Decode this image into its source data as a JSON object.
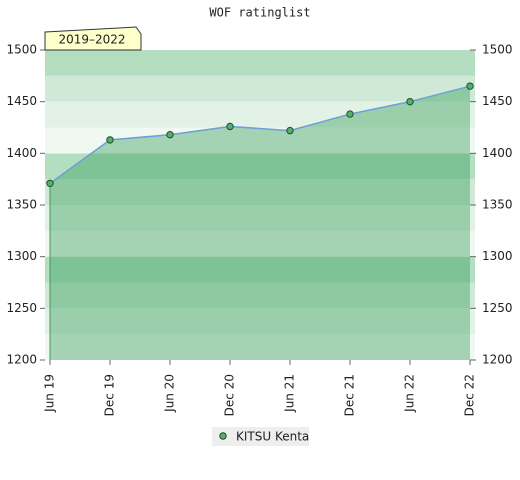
{
  "chart_data": {
    "type": "line",
    "title": "WOF ratinglist",
    "annotation": "2019–2022",
    "categories": [
      "Jun 19",
      "Dec 19",
      "Jun 20",
      "Dec 20",
      "Jun 21",
      "Dec 21",
      "Jun 22",
      "Dec 22"
    ],
    "series": [
      {
        "name": "KITSU Kenta",
        "color": "#6a9fd8",
        "values": [
          1371,
          1413,
          1418,
          1426,
          1422,
          1438,
          1450,
          1465
        ]
      }
    ],
    "ylim": [
      1200,
      1500
    ],
    "yticks": [
      1200,
      1250,
      1300,
      1350,
      1400,
      1450,
      1500
    ],
    "y2lim": [
      1200,
      1500
    ],
    "y2ticks": [
      1200,
      1250,
      1300,
      1350,
      1400,
      1450,
      1500
    ],
    "legend": "bottom"
  }
}
